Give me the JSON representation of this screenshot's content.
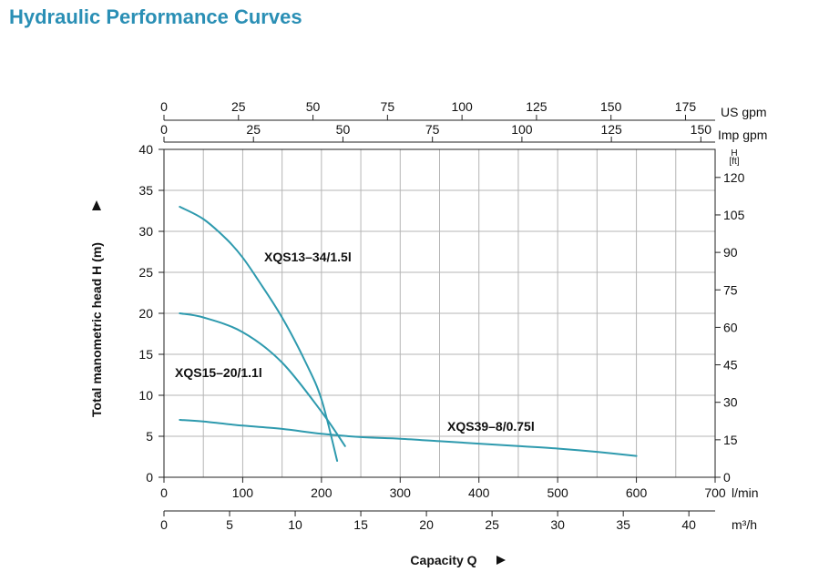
{
  "title": "Hydraulic Performance Curves",
  "chart_data": {
    "type": "line",
    "title": "Hydraulic Performance Curves",
    "xlabel": "Capacity Q",
    "ylabel": "Total manometric head H (m)",
    "xlim": [
      0,
      700
    ],
    "ylim": [
      0,
      40
    ],
    "grid": true,
    "line_color": "#2e9aae",
    "x_axis": {
      "unit": "l/min",
      "ticks": [
        0,
        100,
        200,
        300,
        400,
        500,
        600,
        700
      ]
    },
    "x_axis_m3h": {
      "unit": "m³/h",
      "ticks": [
        0,
        5,
        10,
        15,
        20,
        25,
        30,
        35,
        40
      ]
    },
    "x_axis_us_gpm": {
      "unit": "US gpm",
      "ticks": [
        0,
        25,
        50,
        75,
        100,
        125,
        150,
        175
      ]
    },
    "x_axis_imp_gpm": {
      "unit": "Imp gpm",
      "ticks": [
        0,
        25,
        50,
        75,
        100,
        125,
        150
      ]
    },
    "y_axis": {
      "unit": "m",
      "ticks": [
        0,
        5,
        10,
        15,
        20,
        25,
        30,
        35,
        40
      ]
    },
    "y_axis_ft": {
      "unit_line1": "H",
      "unit_line2": "[ft]",
      "ticks": [
        0,
        15,
        30,
        45,
        60,
        75,
        90,
        105,
        120
      ]
    },
    "series": [
      {
        "name": "XQS13-34/1.5l",
        "label": "XQS13–34/1.5l",
        "x": [
          20,
          50,
          80,
          100,
          120,
          150,
          180,
          200,
          220
        ],
        "y": [
          33,
          31.5,
          29,
          26.8,
          24,
          19.5,
          14,
          9.5,
          2
        ]
      },
      {
        "name": "XQS15-20/1.1l",
        "label": "XQS15–20/1.1l",
        "x": [
          20,
          50,
          100,
          150,
          200,
          230
        ],
        "y": [
          20,
          19.5,
          17.7,
          14,
          8,
          3.8
        ]
      },
      {
        "name": "XQS39-8/0.75l",
        "label": "XQS39–8/0.75l",
        "x": [
          20,
          50,
          100,
          150,
          200,
          250,
          300,
          350,
          400,
          450,
          500,
          550,
          600
        ],
        "y": [
          7,
          6.8,
          6.3,
          5.9,
          5.3,
          4.9,
          4.7,
          4.4,
          4.1,
          3.8,
          3.5,
          3.1,
          2.6
        ]
      }
    ]
  }
}
